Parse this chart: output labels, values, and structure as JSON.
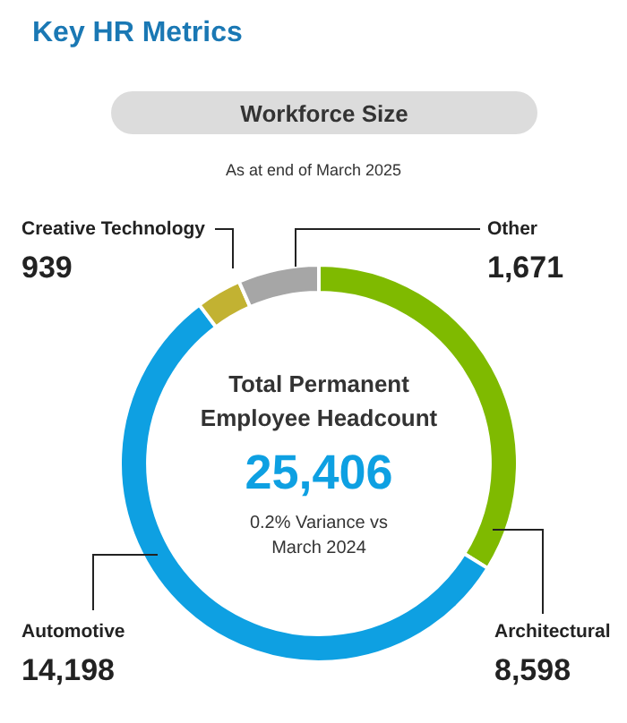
{
  "chart_data": {
    "type": "donut",
    "title": "Key HR Metrics",
    "subtitle": "Workforce Size",
    "annotations": [
      "As at end of March 2025",
      "Total Permanent Employee Headcount",
      "25,406",
      "0.2% Variance vs March 2024"
    ],
    "categories": [
      "Architectural",
      "Automotive",
      "Creative Technology",
      "Other"
    ],
    "values": [
      8598,
      14198,
      939,
      1671
    ],
    "colors": [
      "#7fba00",
      "#0ea0e2",
      "#c2b232",
      "#a6a6a6"
    ],
    "value_labels": [
      "8,598",
      "14,198",
      "939",
      "1,671"
    ]
  }
}
